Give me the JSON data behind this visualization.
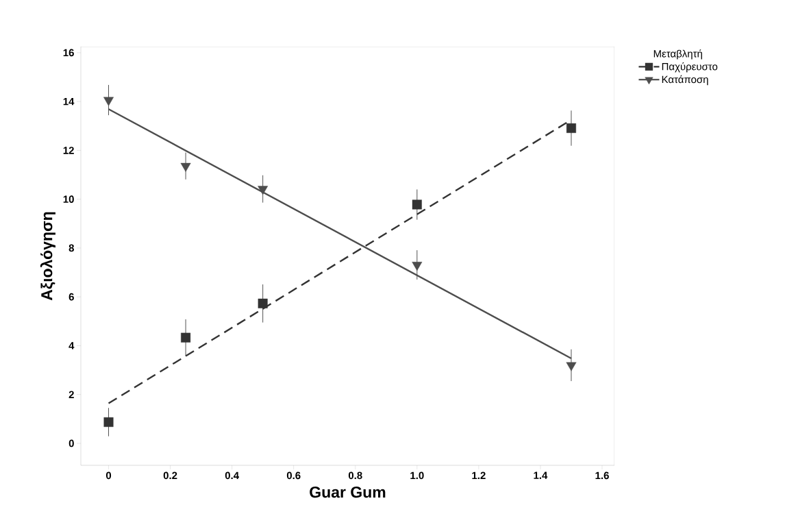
{
  "chart_data": {
    "type": "scatter",
    "xlabel": "Guar Gum",
    "ylabel": "Αξιολόγηση",
    "legend_title": "Μεταβλητή",
    "legend": "top right",
    "grid": false,
    "xlim": [
      -0.09,
      1.64
    ],
    "ylim": [
      -0.9,
      16.25
    ],
    "xticks": [
      0,
      0.2,
      0.4,
      0.6,
      0.8,
      {
        "value": 1.0,
        "label": "1.0"
      },
      1.2,
      1.4,
      1.6
    ],
    "yticks": [
      0,
      2,
      4,
      6,
      8,
      10,
      12,
      14,
      16
    ],
    "series": [
      {
        "name": "Παχύρευστο",
        "marker": "square",
        "line_style": "dashed",
        "color": "#333333",
        "x": [
          0,
          0.25,
          0.5,
          1.0,
          1.5
        ],
        "values": [
          0.87,
          4.33,
          5.73,
          9.78,
          12.91
        ],
        "errors": [
          0.58,
          0.75,
          0.78,
          0.62,
          0.72
        ]
      },
      {
        "name": "Κατάποση",
        "marker": "triangle",
        "line_style": "solid",
        "color": "#4d4d4d",
        "x": [
          0,
          0.25,
          0.5,
          1.0,
          1.5
        ],
        "values": [
          14.06,
          11.36,
          10.42,
          7.31,
          3.2
        ],
        "errors": [
          0.62,
          0.55,
          0.56,
          0.6,
          0.65
        ]
      },
      {
        "type": "line",
        "line_style": "dashed",
        "color": "#333333",
        "x": [
          0,
          1.5
        ],
        "values": [
          1.64,
          13.25
        ]
      },
      {
        "type": "line",
        "line_style": "solid",
        "color": "#4d4d4d",
        "x": [
          0,
          1.5
        ],
        "values": [
          13.69,
          3.48
        ]
      }
    ]
  }
}
